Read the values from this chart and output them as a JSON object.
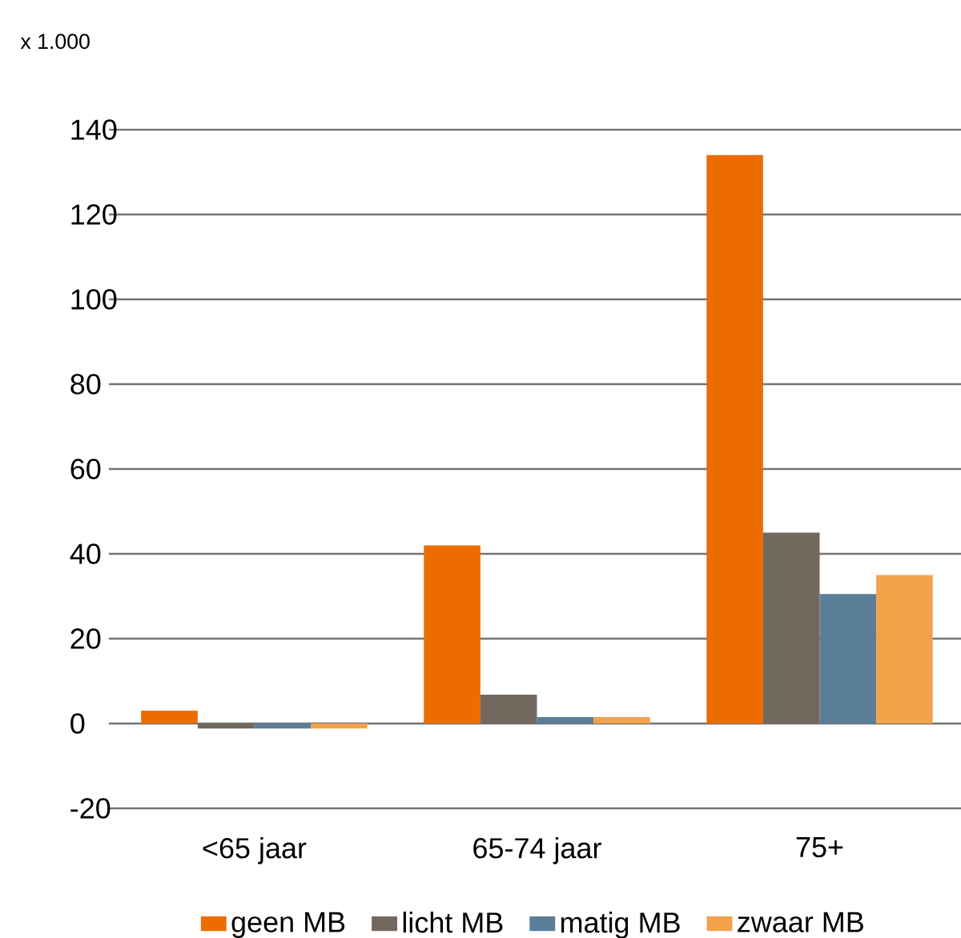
{
  "chart_data": {
    "type": "bar",
    "ylabel": "x 1.000",
    "categories": [
      "<65 jaar",
      "65-74 jaar",
      "75+"
    ],
    "series": [
      {
        "name": "geen MB",
        "color": "#ec6c00",
        "values": [
          3,
          42,
          134
        ]
      },
      {
        "name": "licht MB",
        "color": "#73685e",
        "values": [
          -1.2,
          6.8,
          45
        ]
      },
      {
        "name": "matig MB",
        "color": "#5a7d98",
        "values": [
          -1.2,
          1.5,
          30.5
        ]
      },
      {
        "name": "zwaar MB",
        "color": "#f2a24a",
        "values": [
          -1.2,
          1.5,
          35
        ]
      }
    ],
    "ylim": [
      -20,
      140
    ],
    "yticks": [
      -20,
      0,
      20,
      40,
      60,
      80,
      100,
      120,
      140
    ],
    "grid": "y",
    "legend": "bottom"
  }
}
